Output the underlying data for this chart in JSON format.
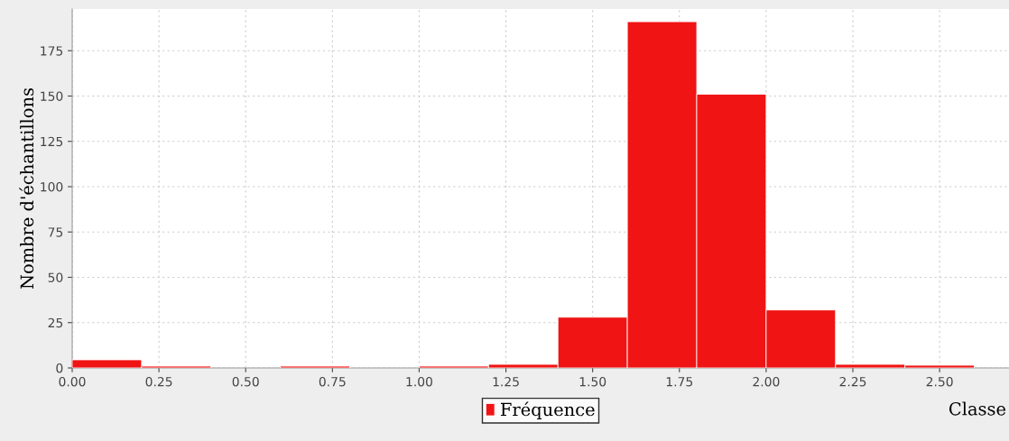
{
  "chart_data": {
    "type": "histogram",
    "xlabel": "Classe",
    "ylabel": "Nombre d'échantillons",
    "bins": [
      0,
      0.2,
      0.4,
      0.6,
      0.8,
      1.0,
      1.2,
      1.4,
      1.6,
      1.8,
      2.0,
      2.2,
      2.4,
      2.6
    ],
    "series": [
      {
        "name": "Fréquence",
        "color": "#f01414",
        "values": [
          4.5,
          1,
          0,
          1,
          0,
          1,
          2,
          28,
          191,
          151,
          32,
          2,
          1.5
        ]
      }
    ],
    "xlim": [
      0,
      2.7
    ],
    "ylim": [
      0,
      198
    ],
    "xticks": [
      {
        "value": 0,
        "label": "0.00"
      },
      {
        "value": 0.25,
        "label": "0.25"
      },
      {
        "value": 0.5,
        "label": "0.50"
      },
      {
        "value": 0.75,
        "label": "0.75"
      },
      {
        "value": 1.0,
        "label": "1.00"
      },
      {
        "value": 1.25,
        "label": "1.25"
      },
      {
        "value": 1.5,
        "label": "1.50"
      },
      {
        "value": 1.75,
        "label": "1.75"
      },
      {
        "value": 2.0,
        "label": "2.00"
      },
      {
        "value": 2.25,
        "label": "2.25"
      },
      {
        "value": 2.5,
        "label": "2.50"
      }
    ],
    "yticks": [
      0,
      25,
      50,
      75,
      100,
      125,
      150,
      175
    ],
    "grid": true,
    "legend": "bottom"
  }
}
